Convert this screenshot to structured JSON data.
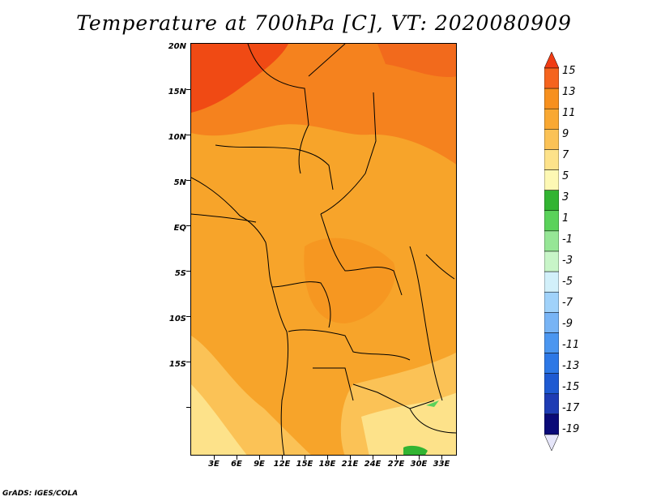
{
  "title": "Temperature at 700hPa [C], VT: 2020080909",
  "credit": "GrADS: IGES/COLA",
  "map": {
    "lat_ticks": [
      "20N",
      "15N",
      "10N",
      "5N",
      "EQ",
      "5S",
      "10S",
      "15S"
    ],
    "lon_ticks": [
      "3E",
      "6E",
      "9E",
      "12E",
      "15E",
      "18E",
      "21E",
      "24E",
      "27E",
      "30E",
      "33E"
    ]
  },
  "colorbar": {
    "labels": [
      "15",
      "13",
      "11",
      "9",
      "7",
      "5",
      "3",
      "1",
      "-1",
      "-3",
      "-5",
      "-7",
      "-9",
      "-11",
      "-13",
      "-15",
      "-17",
      "-19"
    ],
    "colors": [
      "#f03c14",
      "#f5641e",
      "#f7901e",
      "#f9a832",
      "#fbc256",
      "#fde28a",
      "#fdf8b4",
      "#32b432",
      "#5ad25a",
      "#96e696",
      "#c8f5c8",
      "#d2f0fa",
      "#a0d2fa",
      "#78b4f5",
      "#4b96f0",
      "#2d78e6",
      "#1e5ad2",
      "#1e3cb4",
      "#0a0a78",
      "#e6e6fa"
    ]
  }
}
